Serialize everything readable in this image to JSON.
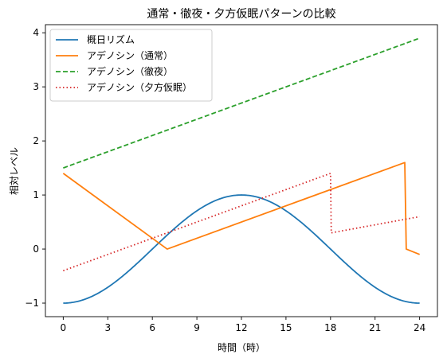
{
  "chart_data": {
    "type": "line",
    "title": "通常・徹夜・夕方仮眠パターンの比較",
    "xlabel": "時間（時）",
    "ylabel": "相対レベル",
    "xlim": [
      -1.2,
      25.2
    ],
    "ylim": [
      -1.25,
      4.15
    ],
    "xticks": [
      0,
      3,
      6,
      9,
      12,
      15,
      18,
      21,
      24
    ],
    "yticks": [
      -1,
      0,
      1,
      2,
      3,
      4
    ],
    "xtick_labels": [
      "0",
      "3",
      "6",
      "9",
      "12",
      "15",
      "18",
      "21",
      "24"
    ],
    "ytick_labels": [
      "−1",
      "0",
      "1",
      "2",
      "3",
      "4"
    ],
    "grid": false,
    "legend_position": "top-left",
    "series": [
      {
        "name": "概日リズム",
        "color": "#1f77b4",
        "dash": "solid",
        "function": "-cos(2*pi*x/24)",
        "x": [
          0,
          24
        ]
      },
      {
        "name": "アデノシン（通常）",
        "color": "#ff7f0e",
        "dash": "solid",
        "x": [
          0,
          7,
          23,
          23.1,
          24
        ],
        "y": [
          1.4,
          0.0,
          1.6,
          0.0,
          -0.1
        ]
      },
      {
        "name": "アデノシン（徹夜）",
        "color": "#2ca02c",
        "dash": "dashed",
        "x": [
          0,
          24
        ],
        "y": [
          1.5,
          3.9
        ]
      },
      {
        "name": "アデノシン（夕方仮眠）",
        "color": "#d62728",
        "dash": "dotted",
        "x": [
          0,
          18,
          18.05,
          24
        ],
        "y": [
          -0.4,
          1.4,
          0.3,
          0.6
        ]
      }
    ]
  }
}
